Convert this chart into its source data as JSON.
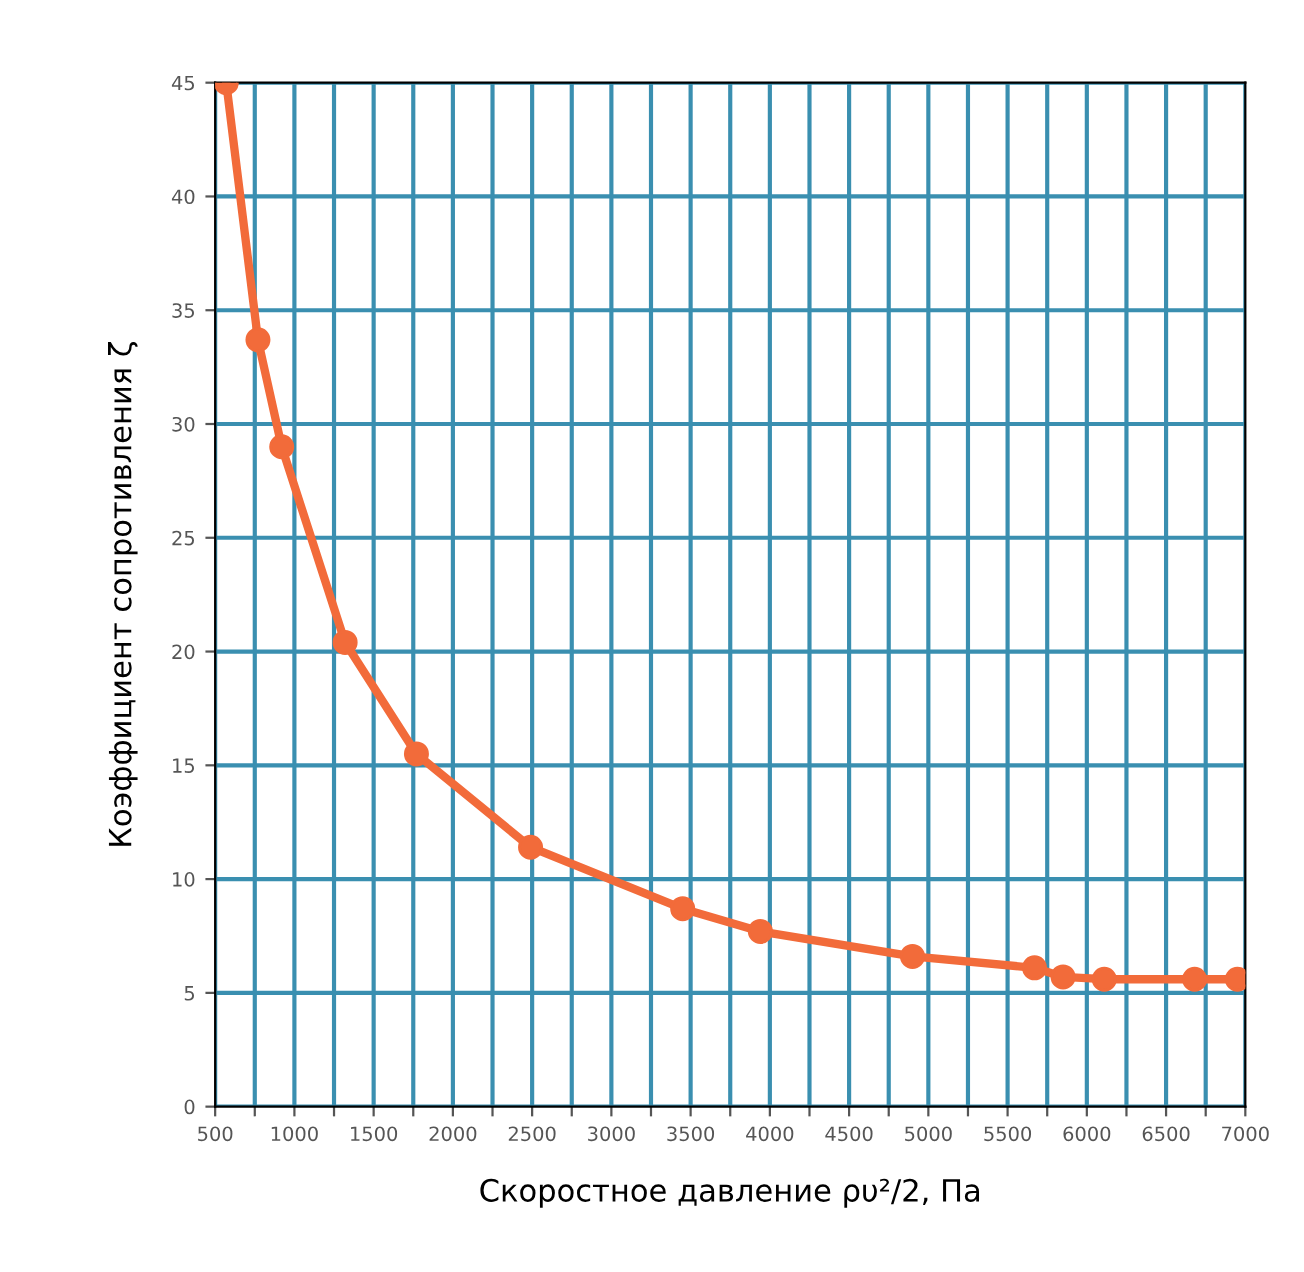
{
  "chart_data": {
    "type": "line",
    "xlabel": "Скоростное давление ρυ²/2, Па",
    "ylabel": "Коэффициент сопротивления ζ",
    "x": [
      570,
      770,
      920,
      1320,
      1770,
      2490,
      3450,
      3940,
      4900,
      5670,
      5850,
      6110,
      6680,
      6950
    ],
    "series": [
      {
        "color": "#f26b3a",
        "values": [
          45,
          33.7,
          29,
          20.4,
          15.5,
          11.4,
          8.7,
          7.7,
          6.6,
          6.1,
          5.7,
          5.6,
          5.6,
          5.6
        ]
      }
    ],
    "marker": "circle",
    "line_style": "solid",
    "grid": true,
    "xlim": [
      500,
      7000
    ],
    "ylim": [
      0,
      45
    ],
    "xticks": [
      500,
      {
        "value": 750,
        "label": null
      },
      1000,
      {
        "value": 1250,
        "label": null
      },
      1500,
      {
        "value": 1750,
        "label": null
      },
      2000,
      {
        "value": 2250,
        "label": null
      },
      2500,
      {
        "value": 2750,
        "label": null
      },
      3000,
      {
        "value": 3250,
        "label": null
      },
      3500,
      {
        "value": 3750,
        "label": null
      },
      4000,
      {
        "value": 4250,
        "label": null
      },
      4500,
      {
        "value": 4750,
        "label": null
      },
      5000,
      {
        "value": 5250,
        "label": null
      },
      5500,
      {
        "value": 5750,
        "label": null
      },
      6000,
      {
        "value": 6250,
        "label": null
      },
      6500,
      {
        "value": 6750,
        "label": null
      },
      7000
    ],
    "yticks": [
      0,
      5,
      10,
      15,
      20,
      25,
      30,
      35,
      40,
      45
    ]
  }
}
